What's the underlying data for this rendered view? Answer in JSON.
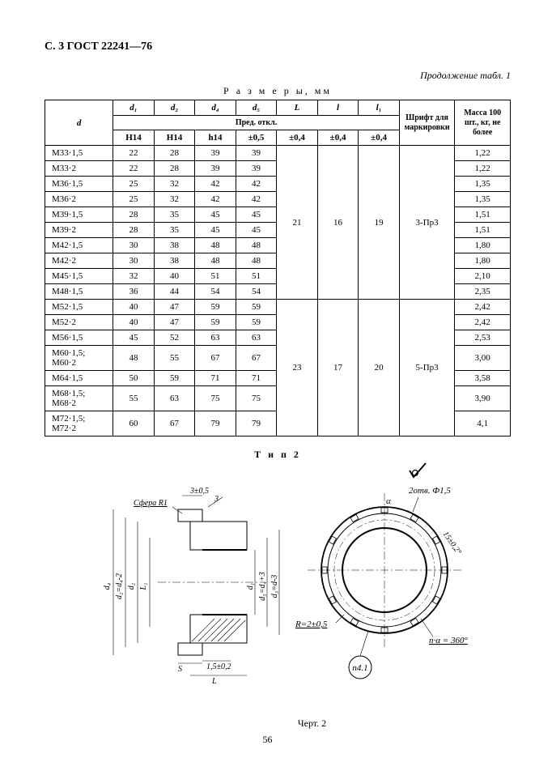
{
  "header": "С. 3 ГОСТ 22241—76",
  "continuation": "Продолжение табл. 1",
  "table_caption": "Р а з м е р ы, мм",
  "col_widths_pct": [
    14.5,
    8.7,
    8.7,
    8.7,
    8.7,
    8.7,
    8.7,
    8.7,
    11.8,
    11.8
  ],
  "headers": {
    "d": "d",
    "d1": "d₁",
    "d2": "d₂",
    "d4": "d₄",
    "d5": "d₅",
    "L": "L",
    "l": "l",
    "l1": "l₁",
    "pred": "Пред. откл.",
    "font": "Шрифт для марки­ровки",
    "mass": "Масса 100 шт., кг, не более",
    "tol": {
      "H14_1": "Н14",
      "H14_2": "Н14",
      "h14": "h14",
      "pm05": "±0,5",
      "pm04a": "±0,4",
      "pm04b": "±0,4",
      "pm04c": "±0,4"
    }
  },
  "rows": [
    {
      "d": "М33·1,5",
      "d1": "22",
      "d2": "28",
      "d4": "39",
      "d5": "39",
      "mass": "1,22"
    },
    {
      "d": "М33·2",
      "d1": "22",
      "d2": "28",
      "d4": "39",
      "d5": "39",
      "mass": "1,22"
    },
    {
      "d": "М36·1,5",
      "d1": "25",
      "d2": "32",
      "d4": "42",
      "d5": "42",
      "mass": "1,35"
    },
    {
      "d": "М36·2",
      "d1": "25",
      "d2": "32",
      "d4": "42",
      "d5": "42",
      "mass": "1,35"
    },
    {
      "d": "М39·1,5",
      "d1": "28",
      "d2": "35",
      "d4": "45",
      "d5": "45",
      "mass": "1,51"
    },
    {
      "d": "М39·2",
      "d1": "28",
      "d2": "35",
      "d4": "45",
      "d5": "45",
      "mass": "1,51"
    },
    {
      "d": "М42·1,5",
      "d1": "30",
      "d2": "38",
      "d4": "48",
      "d5": "48",
      "mass": "1,80"
    },
    {
      "d": "М42·2",
      "d1": "30",
      "d2": "38",
      "d4": "48",
      "d5": "48",
      "mass": "1,80"
    },
    {
      "d": "М45·1,5",
      "d1": "32",
      "d2": "40",
      "d4": "51",
      "d5": "51",
      "mass": "2,10"
    },
    {
      "d": "М48·1,5",
      "d1": "36",
      "d2": "44",
      "d4": "54",
      "d5": "54",
      "mass": "2,35"
    },
    {
      "d": "М52·1,5",
      "d1": "40",
      "d2": "47",
      "d4": "59",
      "d5": "59",
      "mass": "2,42"
    },
    {
      "d": "М52·2",
      "d1": "40",
      "d2": "47",
      "d4": "59",
      "d5": "59",
      "mass": "2,42"
    },
    {
      "d": "М56·1,5",
      "d1": "45",
      "d2": "52",
      "d4": "63",
      "d5": "63",
      "mass": "2,53"
    },
    {
      "d": "М60·1,5;\nМ60·2",
      "d1": "48",
      "d2": "55",
      "d4": "67",
      "d5": "67",
      "mass": "3,00"
    },
    {
      "d": "М64·1,5",
      "d1": "50",
      "d2": "59",
      "d4": "71",
      "d5": "71",
      "mass": "3,58"
    },
    {
      "d": "М68·1,5;\nМ68·2",
      "d1": "55",
      "d2": "63",
      "d4": "75",
      "d5": "75",
      "mass": "3,90"
    },
    {
      "d": "М72·1,5;\nМ72·2",
      "d1": "60",
      "d2": "67",
      "d4": "79",
      "d5": "79",
      "mass": "4,1"
    }
  ],
  "merged": {
    "block1": {
      "L": "21",
      "l": "16",
      "l1": "19",
      "font": "3-Пр3",
      "rows": [
        0,
        9
      ]
    },
    "block_font2": {
      "font": "5-Пр3",
      "rows": [
        10,
        16
      ]
    },
    "block2": {
      "L": "23",
      "l": "17",
      "l1": "20",
      "rows": [
        10,
        16
      ]
    }
  },
  "tip2": "Т и п 2",
  "figure": {
    "top_dim": "3±0,5",
    "sfera": "Сфера R1",
    "arrow3": "3",
    "d4": "d₄",
    "d2v": "d₂=d₄-2",
    "d2": "d₂",
    "L1": "L₁",
    "d1": "d₁",
    "d5v": "d₅=d₄+3",
    "d3v": "d₃=d-3",
    "s": "S",
    "l15": "1,5±0,2",
    "Ldim": "L",
    "right_top": "2отв. Ф1,5",
    "angle_a": "α",
    "angle_15": "15±0,2°",
    "R2": "R=2±0,5",
    "na": "n·α = 360°",
    "balloon": "n4.1"
  },
  "fig_caption": "Черт. 2",
  "page_number": "56"
}
